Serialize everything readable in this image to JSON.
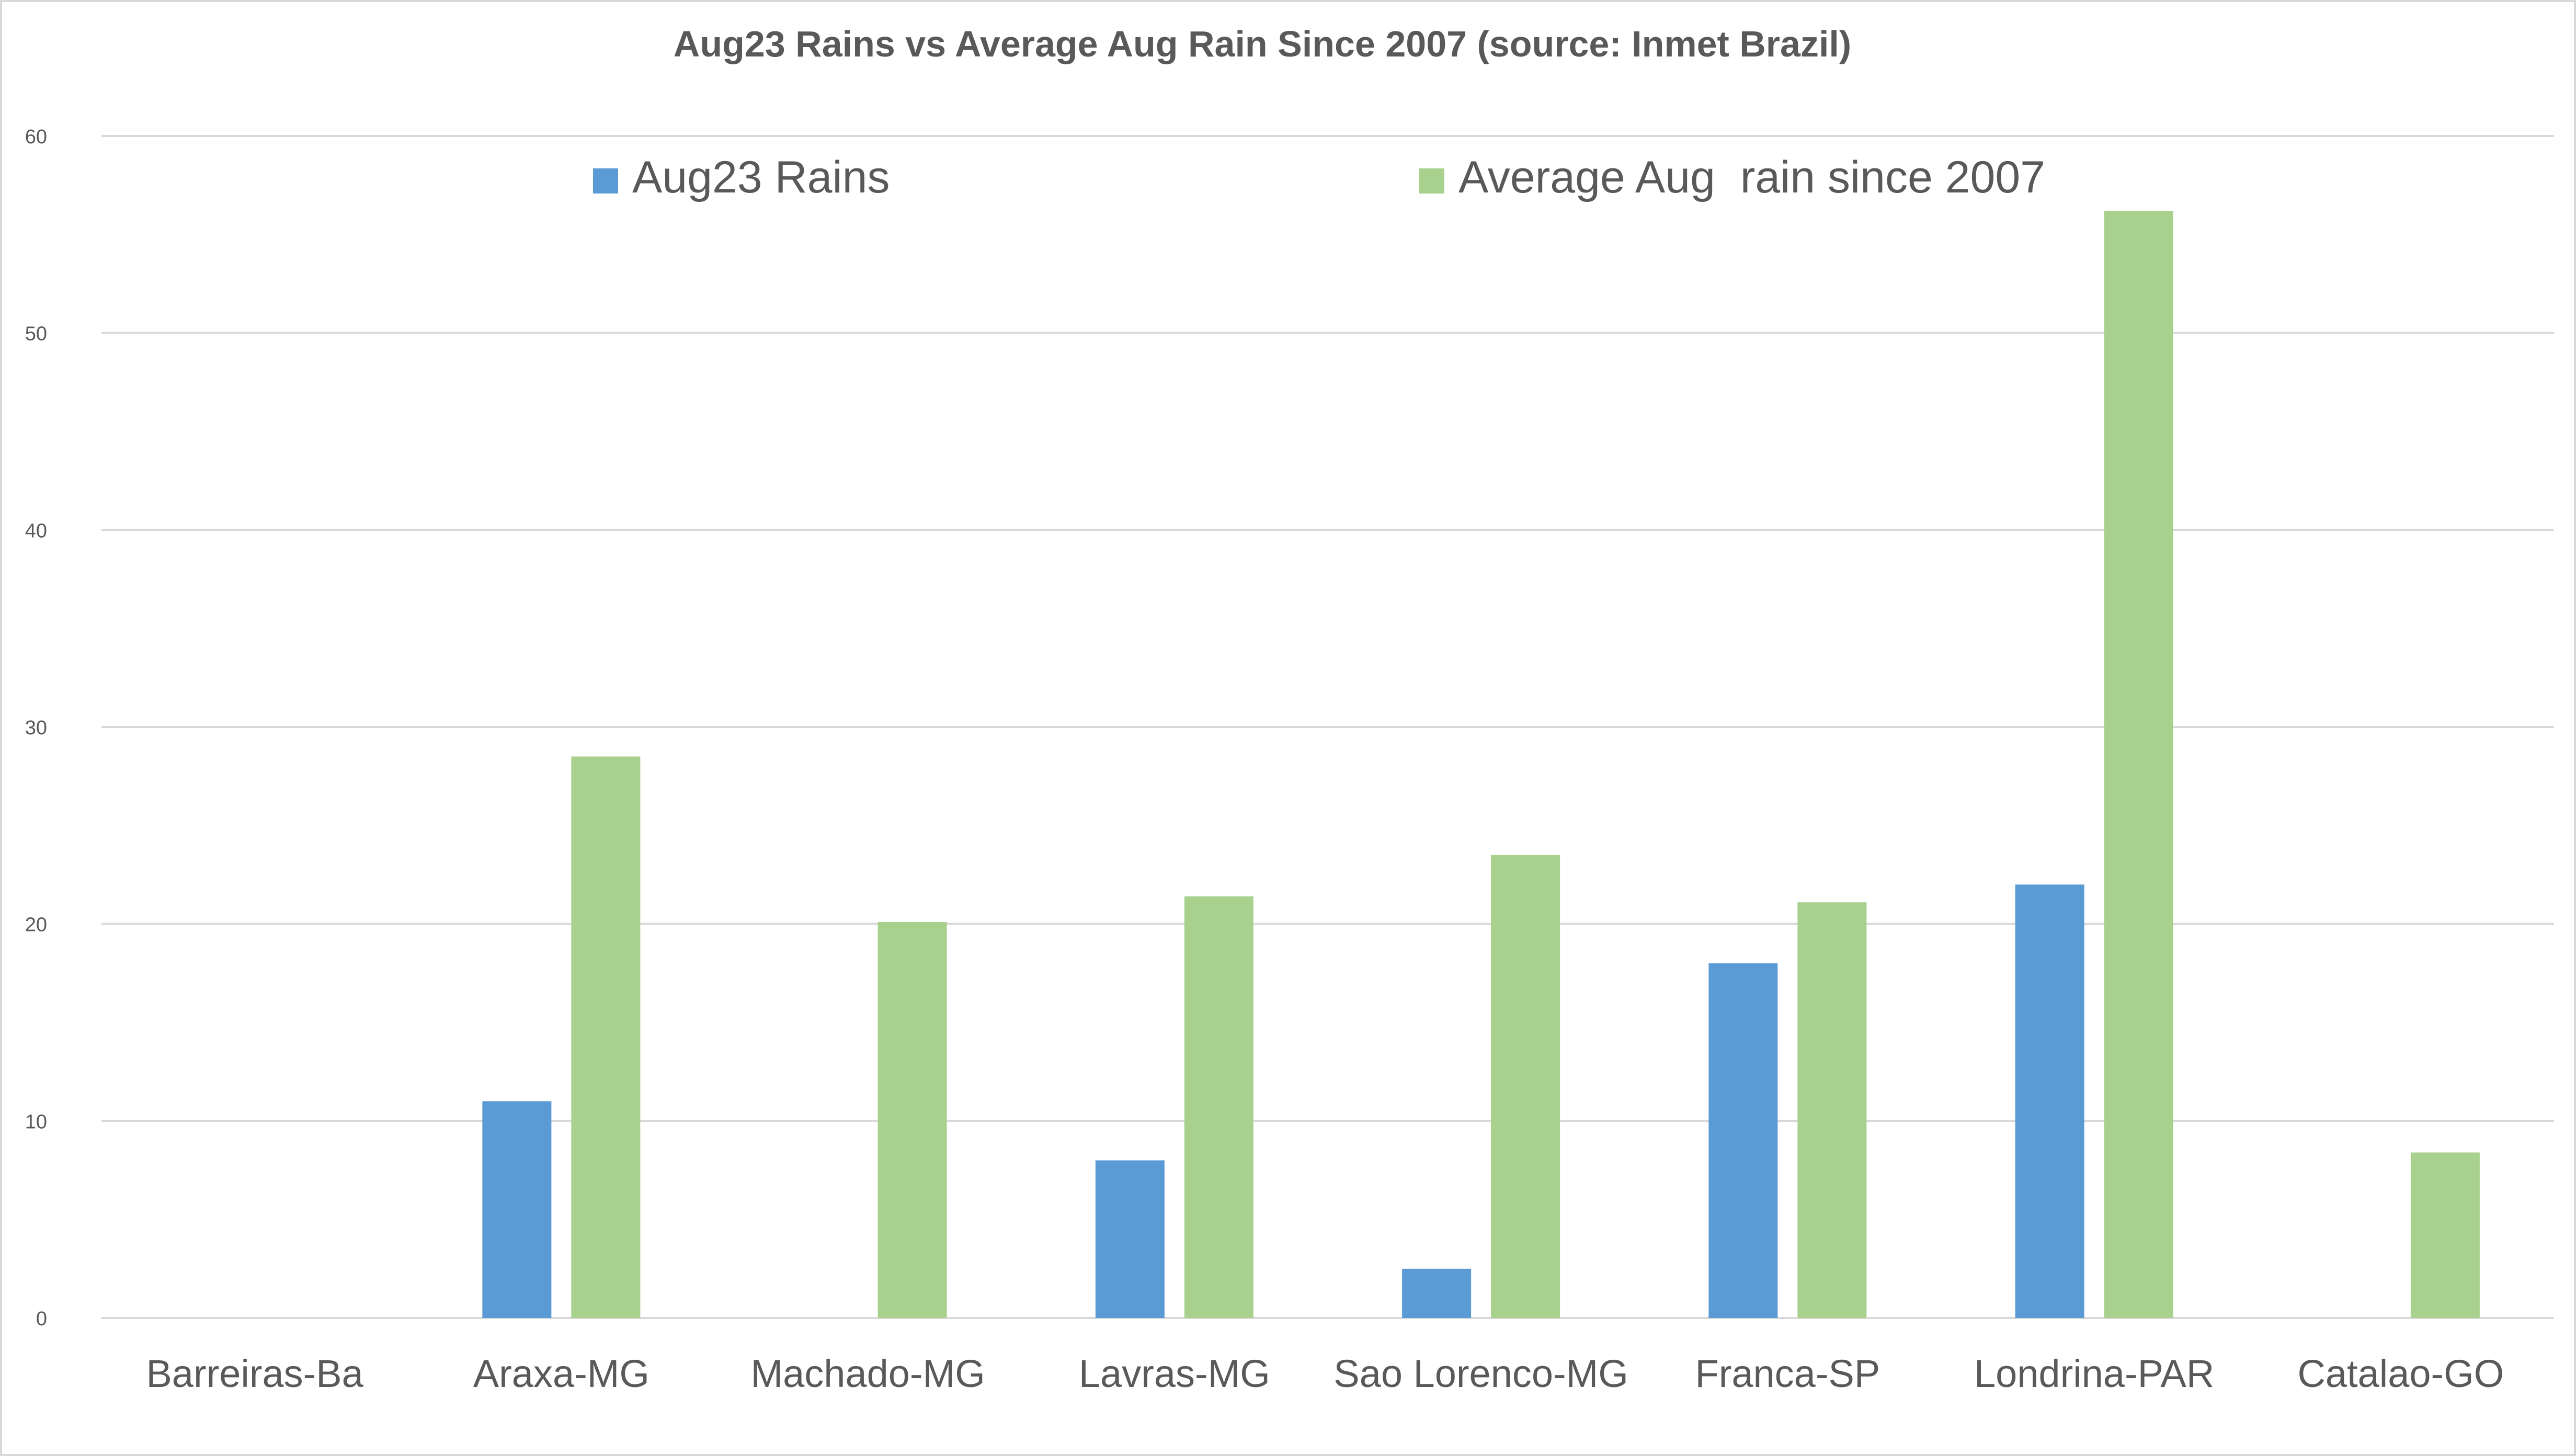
{
  "chart_data": {
    "type": "bar",
    "title": "Aug23 Rains vs Average Aug Rain Since 2007 (source: Inmet Brazil)",
    "xlabel": "",
    "ylabel": "",
    "ylim": [
      0,
      60
    ],
    "yticks": [
      0,
      10,
      20,
      30,
      40,
      50,
      60
    ],
    "grid": true,
    "legend_position": "top",
    "categories": [
      "Barreiras-Ba",
      "Araxa-MG",
      "Machado-MG",
      "Lavras-MG",
      "Sao Lorenco-MG",
      "Franca-SP",
      "Londrina-PAR",
      "Catalao-GO"
    ],
    "series": [
      {
        "name": "Aug23 Rains",
        "color": "#5b9bd5",
        "values": [
          0,
          11,
          0,
          8,
          2.5,
          18,
          22,
          0
        ]
      },
      {
        "name": "Average Aug  rain since 2007",
        "color": "#a9d18e",
        "values": [
          0,
          28.5,
          20.1,
          21.4,
          23.5,
          21.1,
          56.2,
          8.4
        ]
      }
    ],
    "colors": {
      "grid": "#d9d9d9",
      "text": "#595959"
    }
  }
}
